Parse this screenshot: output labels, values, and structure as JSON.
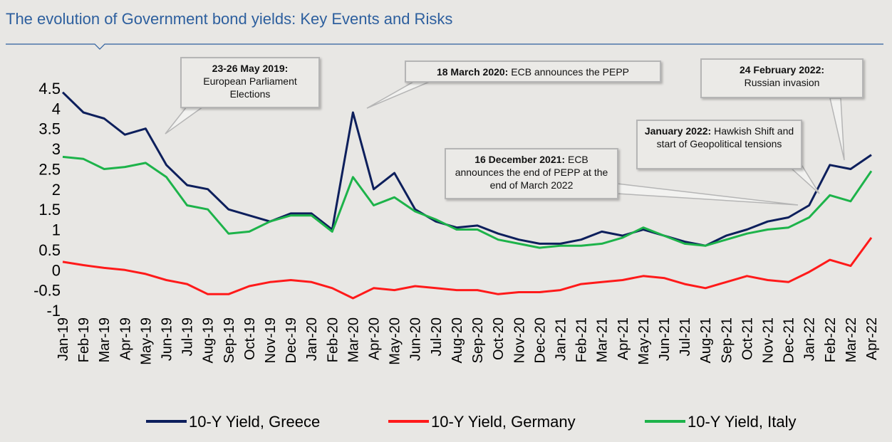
{
  "chart_data": {
    "type": "line",
    "title": "The evolution of Government bond yields: Key Events and Risks",
    "categories": [
      "Jan-19",
      "Feb-19",
      "Mar-19",
      "Apr-19",
      "May-19",
      "Jun-19",
      "Jul-19",
      "Aug-19",
      "Sep-19",
      "Oct-19",
      "Nov-19",
      "Dec-19",
      "Jan-20",
      "Feb-20",
      "Mar-20",
      "Apr-20",
      "May-20",
      "Jun-20",
      "Jul-20",
      "Aug-20",
      "Sep-20",
      "Oct-20",
      "Nov-20",
      "Dec-20",
      "Jan-21",
      "Feb-21",
      "Mar-21",
      "Apr-21",
      "May-21",
      "Jun-21",
      "Jul-21",
      "Aug-21",
      "Sep-21",
      "Oct-21",
      "Nov-21",
      "Dec-21",
      "Jan-22",
      "Feb-22",
      "Mar-22",
      "Apr-22"
    ],
    "series": [
      {
        "name": "10-Y Yield, Greece",
        "color": "#0d1f5c",
        "values": [
          4.4,
          3.9,
          3.75,
          3.35,
          3.5,
          2.6,
          2.1,
          2.0,
          1.5,
          1.35,
          1.2,
          1.4,
          1.4,
          1.0,
          3.9,
          2.0,
          2.4,
          1.5,
          1.2,
          1.05,
          1.1,
          0.9,
          0.75,
          0.65,
          0.65,
          0.75,
          0.95,
          0.85,
          1.0,
          0.85,
          0.7,
          0.6,
          0.85,
          1.0,
          1.2,
          1.3,
          1.6,
          2.6,
          2.5,
          2.85
        ]
      },
      {
        "name": "10-Y Yield, Germany",
        "color": "#ff1a1a",
        "values": [
          0.2,
          0.12,
          0.05,
          0.0,
          -0.1,
          -0.25,
          -0.35,
          -0.6,
          -0.6,
          -0.4,
          -0.3,
          -0.25,
          -0.3,
          -0.45,
          -0.7,
          -0.45,
          -0.5,
          -0.4,
          -0.45,
          -0.5,
          -0.5,
          -0.6,
          -0.55,
          -0.55,
          -0.5,
          -0.35,
          -0.3,
          -0.25,
          -0.15,
          -0.2,
          -0.35,
          -0.45,
          -0.3,
          -0.15,
          -0.25,
          -0.3,
          -0.05,
          0.25,
          0.1,
          0.8
        ]
      },
      {
        "name": "10-Y Yield, Italy",
        "color": "#1db34a",
        "values": [
          2.8,
          2.75,
          2.5,
          2.55,
          2.65,
          2.3,
          1.6,
          1.5,
          0.9,
          0.95,
          1.2,
          1.35,
          1.35,
          0.95,
          2.3,
          1.6,
          1.8,
          1.45,
          1.25,
          1.0,
          1.0,
          0.75,
          0.65,
          0.55,
          0.6,
          0.6,
          0.65,
          0.8,
          1.05,
          0.85,
          0.65,
          0.6,
          0.75,
          0.9,
          1.0,
          1.05,
          1.3,
          1.85,
          1.7,
          2.45
        ]
      }
    ],
    "ylim": [
      -1,
      4.5
    ],
    "yticks": [
      -1,
      -0.5,
      0,
      0.5,
      1,
      1.5,
      2,
      2.5,
      3,
      3.5,
      4,
      4.5
    ],
    "grid": false,
    "legend": "bottom",
    "annotations": [
      {
        "bold": "23-26 May 2019:",
        "text": "European Parliament Elections"
      },
      {
        "bold": "18 March 2020:",
        "text": "ECB announces the PEPP"
      },
      {
        "bold": "16 December 2021:",
        "text": "ECB announces  the end of PEPP at the end of March 2022"
      },
      {
        "bold": "January 2022:",
        "text": "Hawkish Shift and start of Geopolitical tensions"
      },
      {
        "bold": "24 February 2022:",
        "text": "Russian invasion"
      }
    ]
  }
}
